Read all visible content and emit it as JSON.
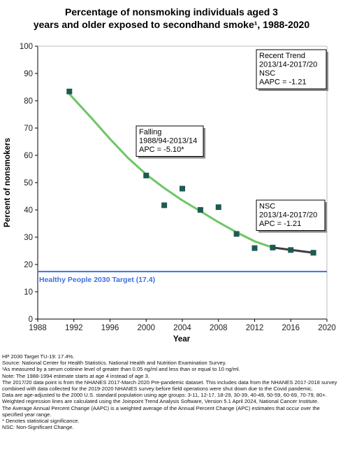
{
  "chart_data": {
    "type": "line",
    "title_lines": [
      "Percentage of nonsmoking individuals aged 3",
      "years and older exposed to secondhand smoke¹, 1988-2020"
    ],
    "xlabel": "Year",
    "ylabel": "Percent of nonsmokers",
    "xlim": [
      1988,
      2020
    ],
    "ylim": [
      0,
      100
    ],
    "x_ticks": [
      1988,
      1992,
      1996,
      2000,
      2004,
      2008,
      2012,
      2016,
      2020
    ],
    "y_ticks": [
      0,
      10,
      20,
      30,
      40,
      50,
      60,
      70,
      80,
      90,
      100
    ],
    "grid": false,
    "series": [
      {
        "kind": "observed",
        "color": "#1e5a52",
        "points": [
          {
            "x": 1991.5,
            "y": 83.4
          },
          {
            "x": 2000.0,
            "y": 52.6
          },
          {
            "x": 2002.0,
            "y": 41.7
          },
          {
            "x": 2004.0,
            "y": 47.8
          },
          {
            "x": 2006.0,
            "y": 40.0
          },
          {
            "x": 2008.0,
            "y": 41.0
          },
          {
            "x": 2010.0,
            "y": 31.2
          },
          {
            "x": 2012.0,
            "y": 26.0
          },
          {
            "x": 2014.0,
            "y": 26.2
          },
          {
            "x": 2016.0,
            "y": 25.3
          },
          {
            "x": 2018.5,
            "y": 24.3
          }
        ]
      },
      {
        "kind": "fitted-falling",
        "color": "#6cc665",
        "points": [
          {
            "x": 1991.5,
            "y": 82.5
          },
          {
            "x": 1994.0,
            "y": 73.5
          },
          {
            "x": 1996.0,
            "y": 66.0
          },
          {
            "x": 1998.0,
            "y": 59.0
          },
          {
            "x": 2000.0,
            "y": 53.0
          },
          {
            "x": 2002.0,
            "y": 48.0
          },
          {
            "x": 2004.0,
            "y": 43.5
          },
          {
            "x": 2006.0,
            "y": 39.5
          },
          {
            "x": 2008.0,
            "y": 35.5
          },
          {
            "x": 2010.0,
            "y": 31.8
          },
          {
            "x": 2012.0,
            "y": 28.5
          },
          {
            "x": 2014.0,
            "y": 26.2
          }
        ]
      },
      {
        "kind": "fitted-recent",
        "color": "#3d3d3d",
        "points": [
          {
            "x": 2014.0,
            "y": 26.2
          },
          {
            "x": 2018.5,
            "y": 24.3
          }
        ]
      }
    ],
    "target": {
      "value": 17.4,
      "label": "Healthy People 2030 Target (17.4)",
      "color": "#3f6fe0"
    },
    "annotations": [
      {
        "lines": [
          "Recent Trend",
          "2013/14-2017/20",
          "NSC",
          "AAPC = -1.21"
        ],
        "position": "top-right"
      },
      {
        "lines": [
          "Falling",
          "1988/94-2013/14",
          "APC = -5.10*"
        ],
        "position": "middle-left"
      },
      {
        "lines": [
          "NSC",
          "2013/14-2017/20",
          "APC = -1.21"
        ],
        "position": "lower-right"
      }
    ]
  },
  "footnotes": [
    "HP 2030 Target TU-19: 17.4%.",
    "Source: National Center for Health Statistics. National Health and Nutrition Examination Survey.",
    "¹As measured by a serum cotinine level of greater than 0.05 ng/ml and less than or equal to 10 ng/ml.",
    "Note: The 1988-1994 estimate starts at age 4 instead of age 3.",
    "The 2017/20 data point is from the NHANES 2017-March 2020 Pre-pandemic dataset. This includes data from the NHANES 2017-2018 survey combined with data collected for the 2019-2020 NHANES survey before field operations were shut down due to the Covid pandemic.",
    "Data are age-adjusted to the 2000 U.S. standard population using age groups: 3-11, 12-17, 18-29, 30-39, 40-49, 50-59, 60-69, 70-79, 80+.",
    "Weighted regression lines are calculated using the Joinpoint Trend Analysis Software, Version 5.1 April 2024, National Cancer Institute.",
    "The Average Annual Percent Change (AAPC) is a weighted average of the Annual Percent Change (APC) estimates that occur over the specified year range.",
    "* Denotes statistical significance.",
    "NSC: Non-Significant Change."
  ]
}
